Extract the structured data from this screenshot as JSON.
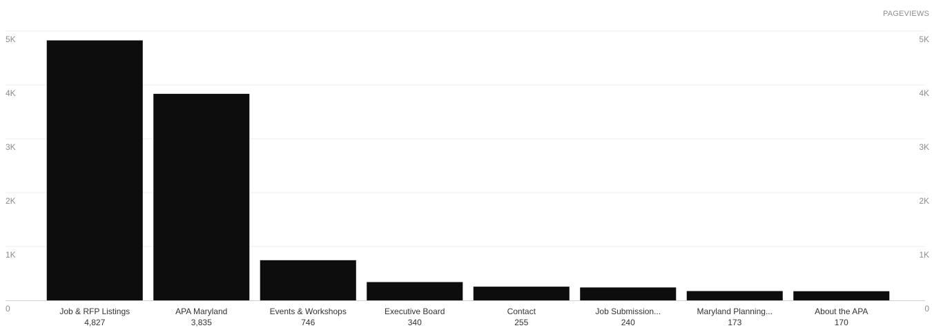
{
  "chart_data": {
    "type": "bar",
    "series_label": "PAGEVIEWS",
    "categories": [
      "Job & RFP Listings",
      "APA Maryland",
      "Events & Workshops",
      "Executive Board",
      "Contact",
      "Job Submission...",
      "Maryland Planning...",
      "About the APA"
    ],
    "values": [
      4827,
      3835,
      746,
      340,
      255,
      240,
      173,
      170
    ],
    "value_labels": [
      "4,827",
      "3,835",
      "746",
      "340",
      "255",
      "240",
      "173",
      "170"
    ],
    "ylim": [
      0,
      5000
    ],
    "yticks": [
      0,
      1000,
      2000,
      3000,
      4000,
      5000
    ],
    "ytick_labels": [
      "0",
      "1K",
      "2K",
      "3K",
      "4K",
      "5K"
    ],
    "grid": true,
    "bar_color": "#0d0d0d",
    "grid_color": "#ececec",
    "axis_color": "#cfcfcf"
  }
}
